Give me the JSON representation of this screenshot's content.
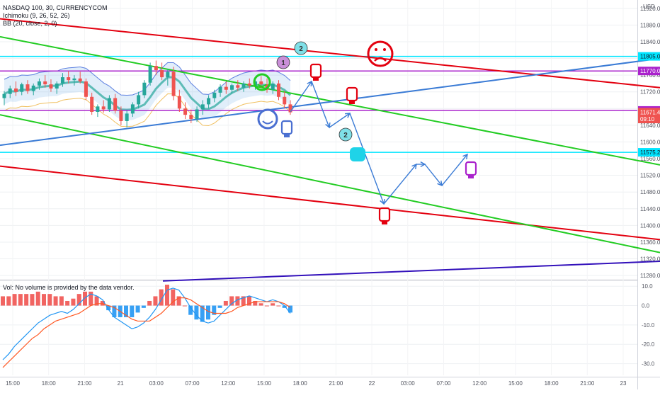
{
  "header": {
    "symbol_line": "NASDAQ 100, 30, CURRENCYCOM",
    "indicator_1": "Ichimoku (9, 26, 52, 26)",
    "indicator_2": "BB (20, close, 2, 0)"
  },
  "currency_label": "USD",
  "colors": {
    "up_candle": "#26a69a",
    "down_candle": "#ef5350",
    "red_line": "#e3000f",
    "green_line": "#22cc22",
    "blue_line": "#3a7bd5",
    "navy_line": "#3311bb",
    "cyan_line": "#00e5ff",
    "purple_line": "#aa22cc",
    "macd_line": "#2196f3",
    "signal_line": "#ff5722"
  },
  "price_axis": {
    "ticks": [
      "11920.0",
      "11880.0",
      "11840.0",
      "11800.0",
      "11760.0",
      "11720.0",
      "11680.0",
      "11640.0",
      "11600.0",
      "11560.0",
      "11520.0",
      "11480.0",
      "11440.0",
      "11400.0",
      "11360.0",
      "11320.0",
      "11280.0"
    ],
    "tick_values": [
      11920,
      11880,
      11840,
      11800,
      11760,
      11720,
      11680,
      11640,
      11600,
      11560,
      11520,
      11480,
      11440,
      11400,
      11360,
      11320,
      11280
    ],
    "range": [
      11270,
      11940
    ]
  },
  "price_badges": [
    {
      "label": "11805.0",
      "value": 11805.0,
      "color": "#00e5ff",
      "text_color": "#131722"
    },
    {
      "label": "11770.0",
      "value": 11770.0,
      "color": "#aa22cc",
      "text_color": "#ffffff"
    },
    {
      "label": "11675.5",
      "value": 11675.5,
      "color": "#aa22cc",
      "text_color": "#ffffff"
    },
    {
      "label": "11671.4",
      "value": 11671.4,
      "color": "#ef5350",
      "text_color": "#ffffff"
    },
    {
      "label": "09:10",
      "value": 11655,
      "color": "#ef5350",
      "text_color": "#ffffff"
    },
    {
      "label": "11575.2",
      "value": 11575.2,
      "color": "#00e5ff",
      "text_color": "#131722"
    }
  ],
  "horizontal_levels": [
    {
      "value": 11805.0,
      "color": "#00e5ff"
    },
    {
      "value": 11770.0,
      "color": "#aa22cc"
    },
    {
      "value": 11675.5,
      "color": "#aa22cc"
    },
    {
      "value": 11575.2,
      "color": "#00e5ff"
    }
  ],
  "volume_label": "Vol: No volume is provided by the data vendor.",
  "macd_axis": {
    "ticks": [
      "10.0",
      "0.0",
      "-10.0",
      "-20.0",
      "-30.0"
    ],
    "tick_values": [
      10,
      0,
      -10,
      -20,
      -30
    ],
    "range": [
      -36,
      13
    ]
  },
  "time_axis": [
    "15:00",
    "18:00",
    "21:00",
    "21",
    "03:00",
    "07:00",
    "12:00",
    "15:00",
    "18:00",
    "21:00",
    "22",
    "03:00",
    "07:00",
    "12:00",
    "15:00",
    "18:00",
    "21:00",
    "23"
  ],
  "chart_data": {
    "type": "candlestick",
    "title": "NASDAQ 100, 30, CURRENCYCOM",
    "ylabel": "USD",
    "ylim": [
      11270,
      11940
    ],
    "candles": [
      {
        "o": 11705,
        "h": 11722,
        "l": 11688,
        "c": 11715
      },
      {
        "o": 11715,
        "h": 11735,
        "l": 11705,
        "c": 11728
      },
      {
        "o": 11728,
        "h": 11745,
        "l": 11710,
        "c": 11720
      },
      {
        "o": 11720,
        "h": 11742,
        "l": 11712,
        "c": 11738
      },
      {
        "o": 11738,
        "h": 11748,
        "l": 11715,
        "c": 11722
      },
      {
        "o": 11722,
        "h": 11740,
        "l": 11712,
        "c": 11735
      },
      {
        "o": 11735,
        "h": 11752,
        "l": 11725,
        "c": 11745
      },
      {
        "o": 11745,
        "h": 11760,
        "l": 11730,
        "c": 11738
      },
      {
        "o": 11738,
        "h": 11750,
        "l": 11720,
        "c": 11728
      },
      {
        "o": 11728,
        "h": 11745,
        "l": 11715,
        "c": 11740
      },
      {
        "o": 11740,
        "h": 11765,
        "l": 11732,
        "c": 11755
      },
      {
        "o": 11755,
        "h": 11770,
        "l": 11740,
        "c": 11748
      },
      {
        "o": 11748,
        "h": 11760,
        "l": 11735,
        "c": 11752
      },
      {
        "o": 11752,
        "h": 11768,
        "l": 11740,
        "c": 11745
      },
      {
        "o": 11745,
        "h": 11752,
        "l": 11700,
        "c": 11708
      },
      {
        "o": 11708,
        "h": 11718,
        "l": 11665,
        "c": 11672
      },
      {
        "o": 11672,
        "h": 11690,
        "l": 11660,
        "c": 11685
      },
      {
        "o": 11685,
        "h": 11700,
        "l": 11670,
        "c": 11678
      },
      {
        "o": 11678,
        "h": 11712,
        "l": 11672,
        "c": 11705
      },
      {
        "o": 11705,
        "h": 11715,
        "l": 11668,
        "c": 11675
      },
      {
        "o": 11675,
        "h": 11685,
        "l": 11640,
        "c": 11650
      },
      {
        "o": 11650,
        "h": 11675,
        "l": 11635,
        "c": 11668
      },
      {
        "o": 11668,
        "h": 11695,
        "l": 11660,
        "c": 11690
      },
      {
        "o": 11690,
        "h": 11720,
        "l": 11680,
        "c": 11712
      },
      {
        "o": 11712,
        "h": 11748,
        "l": 11705,
        "c": 11742
      },
      {
        "o": 11742,
        "h": 11790,
        "l": 11735,
        "c": 11782
      },
      {
        "o": 11782,
        "h": 11795,
        "l": 11760,
        "c": 11772
      },
      {
        "o": 11772,
        "h": 11790,
        "l": 11748,
        "c": 11755
      },
      {
        "o": 11755,
        "h": 11775,
        "l": 11735,
        "c": 11768
      },
      {
        "o": 11768,
        "h": 11780,
        "l": 11700,
        "c": 11710
      },
      {
        "o": 11710,
        "h": 11725,
        "l": 11672,
        "c": 11680
      },
      {
        "o": 11680,
        "h": 11695,
        "l": 11655,
        "c": 11665
      },
      {
        "o": 11665,
        "h": 11678,
        "l": 11645,
        "c": 11655
      },
      {
        "o": 11655,
        "h": 11685,
        "l": 11648,
        "c": 11678
      },
      {
        "o": 11678,
        "h": 11700,
        "l": 11665,
        "c": 11690
      },
      {
        "o": 11690,
        "h": 11712,
        "l": 11680,
        "c": 11705
      },
      {
        "o": 11705,
        "h": 11725,
        "l": 11695,
        "c": 11718
      },
      {
        "o": 11718,
        "h": 11738,
        "l": 11708,
        "c": 11732
      },
      {
        "o": 11732,
        "h": 11745,
        "l": 11715,
        "c": 11725
      },
      {
        "o": 11725,
        "h": 11740,
        "l": 11715,
        "c": 11736
      },
      {
        "o": 11736,
        "h": 11748,
        "l": 11722,
        "c": 11730
      },
      {
        "o": 11730,
        "h": 11745,
        "l": 11720,
        "c": 11740
      },
      {
        "o": 11740,
        "h": 11752,
        "l": 11728,
        "c": 11735
      },
      {
        "o": 11735,
        "h": 11750,
        "l": 11725,
        "c": 11745
      },
      {
        "o": 11745,
        "h": 11758,
        "l": 11730,
        "c": 11738
      },
      {
        "o": 11738,
        "h": 11752,
        "l": 11718,
        "c": 11725
      },
      {
        "o": 11725,
        "h": 11745,
        "l": 11715,
        "c": 11740
      },
      {
        "o": 11740,
        "h": 11748,
        "l": 11700,
        "c": 11708
      },
      {
        "o": 11708,
        "h": 11722,
        "l": 11680,
        "c": 11690
      },
      {
        "o": 11690,
        "h": 11700,
        "l": 11665,
        "c": 11671
      }
    ],
    "trend_lines": [
      {
        "color": "#e3000f",
        "points": [
          [
            0,
            11895
          ],
          [
            932,
            11730
          ]
        ]
      },
      {
        "color": "#e3000f",
        "points": [
          [
            0,
            11542
          ],
          [
            932,
            11366
          ]
        ]
      },
      {
        "color": "#22cc22",
        "points": [
          [
            0,
            11852
          ],
          [
            932,
            11545
          ]
        ]
      },
      {
        "color": "#22cc22",
        "points": [
          [
            0,
            11665
          ],
          [
            932,
            11335
          ]
        ]
      },
      {
        "color": "#3a7bd5",
        "points": [
          [
            0,
            11592
          ],
          [
            932,
            11800
          ]
        ]
      },
      {
        "color": "#3311bb",
        "points": [
          [
            230,
            11267
          ],
          [
            932,
            11314
          ]
        ]
      }
    ],
    "macd": [
      -28,
      -25,
      -21,
      -18,
      -15,
      -12,
      -9,
      -7,
      -5,
      -4,
      -3,
      -4,
      -2,
      1,
      4,
      6,
      5,
      3,
      -2,
      -6,
      -8,
      -10,
      -12,
      -11,
      -9,
      -6,
      -2,
      3,
      8,
      9,
      8,
      4,
      -1,
      -5,
      -8,
      -9,
      -8,
      -5,
      -2,
      1,
      3,
      4,
      5,
      4,
      3,
      2,
      3,
      2,
      0,
      -4
    ],
    "signal": [
      -32,
      -29,
      -26,
      -23,
      -20,
      -17,
      -15,
      -12,
      -10,
      -8,
      -7,
      -6,
      -5,
      -4,
      -2,
      0,
      1,
      1,
      0,
      -1,
      -3,
      -5,
      -7,
      -8,
      -8,
      -8,
      -6,
      -4,
      -1,
      2,
      4,
      4,
      3,
      1,
      -1,
      -3,
      -4,
      -4,
      -4,
      -3,
      -1,
      0,
      1,
      2,
      2,
      2,
      2,
      2,
      1,
      -1
    ]
  }
}
